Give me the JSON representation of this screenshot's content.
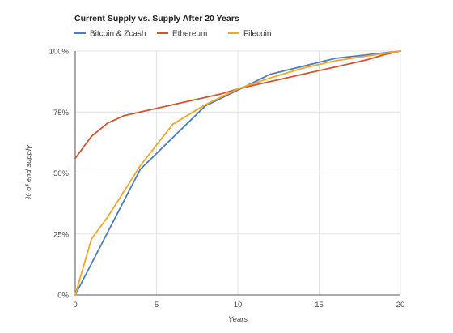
{
  "chart_data": {
    "type": "line",
    "title": "Current Supply vs. Supply After 20 Years",
    "xlabel": "Years",
    "ylabel": "% of end supply",
    "xlim": [
      0,
      20
    ],
    "ylim": [
      0,
      100
    ],
    "x_ticks": [
      0,
      5,
      10,
      15,
      20
    ],
    "y_ticks": [
      0,
      25,
      50,
      75,
      100
    ],
    "x_tick_labels": [
      "0",
      "5",
      "10",
      "15",
      "20"
    ],
    "y_tick_labels": [
      "0%",
      "25%",
      "50%",
      "75%",
      "100%"
    ],
    "grid": true,
    "legend_position": "top",
    "series": [
      {
        "name": "Bitcoin & Zcash",
        "color": "#4a7cc7",
        "x": [
          0,
          4,
          8,
          12,
          16,
          20
        ],
        "y": [
          0,
          51.5,
          77.5,
          90.5,
          97,
          100
        ]
      },
      {
        "name": "Ethereum",
        "color": "#d9512c",
        "x": [
          0,
          1,
          2,
          3,
          4,
          5,
          6,
          7,
          8,
          9,
          10,
          11,
          12,
          13,
          14,
          15,
          16,
          17,
          18,
          19,
          20
        ],
        "y": [
          56,
          65,
          70.5,
          73.5,
          75,
          76.5,
          78,
          79.5,
          81,
          82.5,
          84.5,
          86,
          87.5,
          89,
          90.5,
          92,
          93.5,
          95,
          96.5,
          98.5,
          100
        ]
      },
      {
        "name": "Filecoin",
        "color": "#f5a623",
        "x": [
          0,
          1,
          2,
          4,
          6,
          8,
          10,
          12,
          14,
          16,
          18,
          20
        ],
        "y": [
          0,
          23,
          32,
          53,
          70,
          78,
          84.5,
          89,
          93,
          96,
          98,
          100
        ]
      }
    ]
  }
}
